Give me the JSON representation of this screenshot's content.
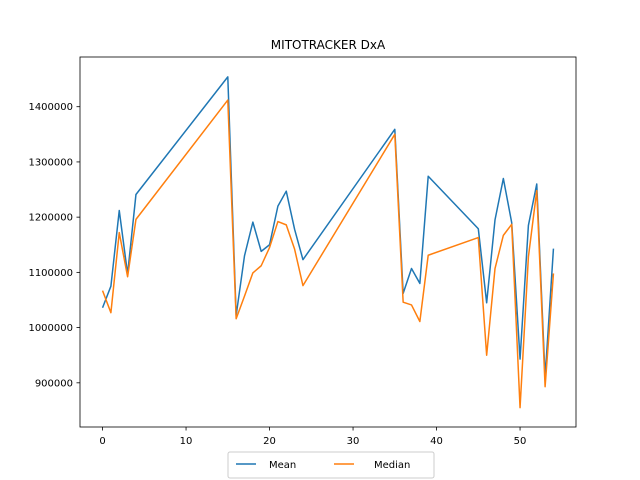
{
  "chart_data": {
    "type": "line",
    "title": "MITOTRACKER DxA",
    "xlabel": "",
    "ylabel": "",
    "xlim": [
      -2.7,
      56.7
    ],
    "ylim": [
      820000,
      1490000
    ],
    "x_ticks": [
      0,
      10,
      20,
      30,
      40,
      50
    ],
    "y_ticks": [
      900000,
      1000000,
      1100000,
      1200000,
      1300000,
      1400000
    ],
    "grid": false,
    "legend_position": "bottom-center",
    "x": [
      0,
      1,
      2,
      3,
      4,
      15,
      16,
      17,
      18,
      19,
      20,
      21,
      22,
      23,
      24,
      35,
      36,
      37,
      38,
      39,
      45,
      46,
      47,
      48,
      49,
      50,
      51,
      52,
      53,
      54
    ],
    "series": [
      {
        "name": "Mean",
        "color": "#1f77b4",
        "values": [
          1036000,
          1075000,
          1212000,
          1097000,
          1241000,
          1454000,
          1022000,
          1130000,
          1191000,
          1138000,
          1150000,
          1220000,
          1247000,
          1178000,
          1123000,
          1359000,
          1062000,
          1107000,
          1080000,
          1274000,
          1179000,
          1045000,
          1195000,
          1270000,
          1190000,
          943000,
          1185000,
          1260000,
          910000,
          1143000
        ]
      },
      {
        "name": "Median",
        "color": "#ff7f0e",
        "values": [
          1067000,
          1027000,
          1172000,
          1092000,
          1196000,
          1412000,
          1016000,
          1057000,
          1099000,
          1112000,
          1145000,
          1192000,
          1186000,
          1142000,
          1076000,
          1350000,
          1046000,
          1041000,
          1011000,
          1131000,
          1163000,
          950000,
          1107000,
          1167000,
          1187000,
          855000,
          1128000,
          1248000,
          893000,
          1098000
        ]
      }
    ]
  }
}
